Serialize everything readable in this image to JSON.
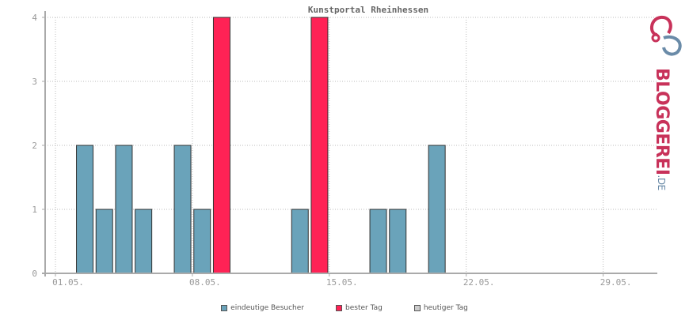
{
  "chart_data": {
    "type": "bar",
    "title": "Kunstportal Rheinhessen",
    "x_tick_labels": [
      "01.05.",
      "08.05.",
      "15.05.",
      "22.05.",
      "29.05."
    ],
    "x_tick_days": [
      1,
      8,
      15,
      22,
      29
    ],
    "days": [
      1,
      2,
      3,
      4,
      5,
      6,
      7,
      8,
      9,
      10,
      11,
      12,
      13,
      14,
      15,
      16,
      17,
      18,
      19,
      20,
      21,
      22,
      23,
      24,
      25,
      26,
      27,
      28,
      29,
      30
    ],
    "series": [
      {
        "name": "eindeutige Besucher",
        "color": "#6aa3ba",
        "values": [
          0,
          2,
          1,
          2,
          1,
          0,
          2,
          1,
          4,
          0,
          0,
          0,
          1,
          4,
          0,
          0,
          1,
          1,
          0,
          2,
          0,
          0,
          0,
          0,
          0,
          0,
          0,
          0,
          0,
          0
        ]
      },
      {
        "name": "bester Tag",
        "color": "#ff2255",
        "days": [
          9,
          14
        ]
      },
      {
        "name": "heutiger Tag",
        "color": "#cccccc",
        "days": []
      }
    ],
    "y_ticks": [
      0,
      1,
      2,
      3,
      4
    ],
    "ylim": [
      0,
      4
    ],
    "grid": true,
    "legend_position": "bottom"
  },
  "logo": {
    "word": "BLOGGEREI",
    "suffix": ".DE"
  }
}
